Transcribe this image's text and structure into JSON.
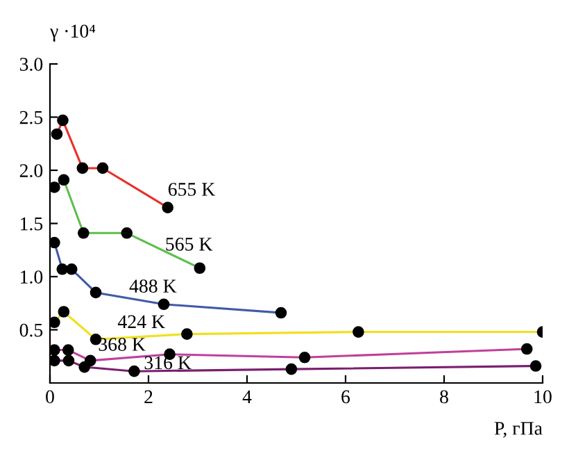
{
  "chart_data": {
    "type": "line",
    "ylabel": "γ ·10⁴",
    "xlabel": "P, гПа",
    "xlim": [
      0,
      10
    ],
    "xticks": [
      0,
      2,
      4,
      6,
      8,
      10
    ],
    "ylim": [
      0,
      3.0
    ],
    "yticks": [
      {
        "value": 0.5,
        "label": "0.5"
      },
      {
        "value": 1.0,
        "label": "1.0"
      },
      {
        "value": 1.5,
        "label": "1.5"
      },
      {
        "value": 2.0,
        "label": "2.0"
      },
      {
        "value": 2.5,
        "label": "2.5"
      },
      {
        "value": 3.0,
        "label": "3.0"
      }
    ],
    "marker": "circle",
    "grid": false,
    "legend": false,
    "series": [
      {
        "name": "655 K",
        "color": "#e8302a",
        "x": [
          0.14,
          0.26,
          0.66,
          1.07,
          2.39
        ],
        "values": [
          2.34,
          2.47,
          2.02,
          2.02,
          1.65
        ]
      },
      {
        "name": "565 K",
        "color": "#5cbf4a",
        "x": [
          0.09,
          0.28,
          0.68,
          1.56,
          3.04
        ],
        "values": [
          1.84,
          1.91,
          1.41,
          1.41,
          1.08
        ]
      },
      {
        "name": "488 K",
        "color": "#3f5aa8",
        "x": [
          0.09,
          0.25,
          0.44,
          0.93,
          2.31,
          4.69
        ],
        "values": [
          1.32,
          1.07,
          1.07,
          0.85,
          0.74,
          0.66
        ]
      },
      {
        "name": "424 K",
        "color": "#f0e020",
        "x": [
          0.09,
          0.28,
          0.93,
          2.78,
          6.26,
          10.0
        ],
        "values": [
          0.57,
          0.67,
          0.41,
          0.46,
          0.48,
          0.48
        ]
      },
      {
        "name": "368 K",
        "color": "#c0409a",
        "x": [
          0.09,
          0.37,
          0.82,
          2.43,
          5.17,
          9.68
        ],
        "values": [
          0.31,
          0.31,
          0.21,
          0.27,
          0.24,
          0.32
        ]
      },
      {
        "name": "316 K",
        "color": "#7a1f6e",
        "x": [
          0.09,
          0.38,
          0.7,
          1.71,
          4.9,
          9.86
        ],
        "values": [
          0.21,
          0.21,
          0.15,
          0.11,
          0.13,
          0.16
        ]
      }
    ]
  }
}
